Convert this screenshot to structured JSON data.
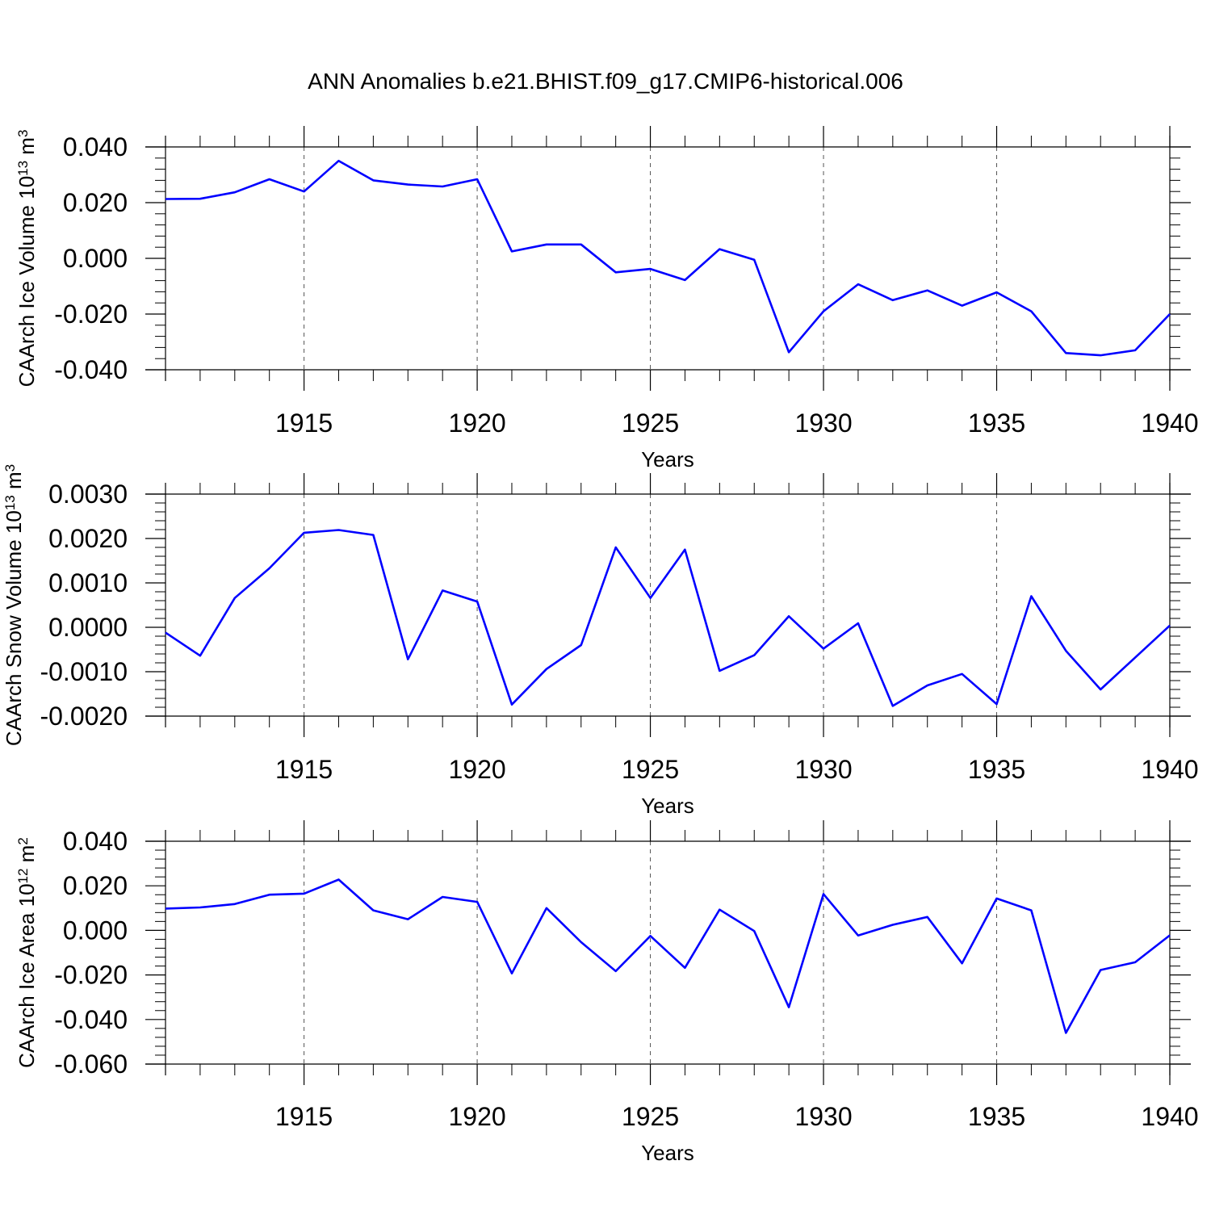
{
  "title": "ANN Anomalies b.e21.BHIST.f09_g17.CMIP6-historical.006",
  "colors": {
    "series": "#0000ff",
    "axis": "#000000",
    "grid": "#555555"
  },
  "chart_data": [
    {
      "type": "line",
      "ylabel": {
        "main": "CAArch Ice Volume 10",
        "exp": "13",
        "unit": " m",
        "unit_exp": "3"
      },
      "xlabel": "Years",
      "xlim": [
        1911,
        1940
      ],
      "ylim": [
        -0.04,
        0.04
      ],
      "xticks": [
        1915,
        1920,
        1925,
        1930,
        1935,
        1940
      ],
      "xtick_labels": [
        "1915",
        "1920",
        "1925",
        "1930",
        "1935",
        "1940"
      ],
      "yticks": [
        -0.04,
        -0.02,
        0.0,
        0.02,
        0.04
      ],
      "ytick_labels": [
        "-0.040",
        "-0.020",
        "0.000",
        "0.020",
        "0.040"
      ],
      "grid": "vertical dashed at major x ticks",
      "x": [
        1911,
        1912,
        1913,
        1914,
        1915,
        1916,
        1917,
        1918,
        1919,
        1920,
        1921,
        1922,
        1923,
        1924,
        1925,
        1926,
        1927,
        1928,
        1929,
        1930,
        1931,
        1932,
        1933,
        1934,
        1935,
        1936,
        1937,
        1938,
        1939,
        1940
      ],
      "series": [
        {
          "values": [
            0.0213,
            0.0214,
            0.0237,
            0.0284,
            0.024,
            0.035,
            0.028,
            0.0265,
            0.0258,
            0.0284,
            0.0025,
            0.005,
            0.005,
            -0.005,
            -0.0038,
            -0.0078,
            0.0033,
            -0.0005,
            -0.0337,
            -0.019,
            -0.0093,
            -0.015,
            -0.0115,
            -0.017,
            -0.0122,
            -0.019,
            -0.034,
            -0.0348,
            -0.033,
            -0.02
          ]
        }
      ]
    },
    {
      "type": "line",
      "ylabel": {
        "main": "CAArch Snow Volume 10",
        "exp": "13",
        "unit": " m",
        "unit_exp": "3"
      },
      "xlabel": "Years",
      "xlim": [
        1911,
        1940
      ],
      "ylim": [
        -0.002,
        0.003
      ],
      "xticks": [
        1915,
        1920,
        1925,
        1930,
        1935,
        1940
      ],
      "xtick_labels": [
        "1915",
        "1920",
        "1925",
        "1930",
        "1935",
        "1940"
      ],
      "yticks": [
        -0.002,
        -0.001,
        0.0,
        0.001,
        0.002,
        0.003
      ],
      "ytick_labels": [
        "-0.0020",
        "-0.0010",
        "0.0000",
        "0.0010",
        "0.0020",
        "0.0030"
      ],
      "grid": "vertical dashed at major x ticks",
      "x": [
        1911,
        1912,
        1913,
        1914,
        1915,
        1916,
        1917,
        1918,
        1919,
        1920,
        1921,
        1922,
        1923,
        1924,
        1925,
        1926,
        1927,
        1928,
        1929,
        1930,
        1931,
        1932,
        1933,
        1934,
        1935,
        1936,
        1937,
        1938,
        1939,
        1940
      ],
      "series": [
        {
          "values": [
            -0.00012,
            -0.00064,
            0.00066,
            0.00133,
            0.00213,
            0.00219,
            0.00208,
            -0.00072,
            0.00083,
            0.00058,
            -0.00174,
            -0.00094,
            -0.0004,
            0.0018,
            0.00066,
            0.00175,
            -0.00098,
            -0.00063,
            0.00025,
            -0.00048,
            9e-05,
            -0.00177,
            -0.00131,
            -0.00105,
            -0.00173,
            0.0007,
            -0.00053,
            -0.0014,
            -0.00068,
            4e-05
          ]
        }
      ]
    },
    {
      "type": "line",
      "ylabel": {
        "main": "CAArch Ice Area 10",
        "exp": "12",
        "unit": " m",
        "unit_exp": "2"
      },
      "xlabel": "Years",
      "xlim": [
        1911,
        1940
      ],
      "ylim": [
        -0.06,
        0.04
      ],
      "xticks": [
        1915,
        1920,
        1925,
        1930,
        1935,
        1940
      ],
      "xtick_labels": [
        "1915",
        "1920",
        "1925",
        "1930",
        "1935",
        "1940"
      ],
      "yticks": [
        -0.06,
        -0.04,
        -0.02,
        0.0,
        0.02,
        0.04
      ],
      "ytick_labels": [
        "-0.060",
        "-0.040",
        "-0.020",
        "0.000",
        "0.020",
        "0.040"
      ],
      "grid": "vertical dashed at major x ticks",
      "x": [
        1911,
        1912,
        1913,
        1914,
        1915,
        1916,
        1917,
        1918,
        1919,
        1920,
        1921,
        1922,
        1923,
        1924,
        1925,
        1926,
        1927,
        1928,
        1929,
        1930,
        1931,
        1932,
        1933,
        1934,
        1935,
        1936,
        1937,
        1938,
        1939,
        1940
      ],
      "series": [
        {
          "values": [
            0.0098,
            0.0103,
            0.0118,
            0.016,
            0.0165,
            0.0228,
            0.009,
            0.005,
            0.015,
            0.0128,
            -0.0193,
            0.01,
            -0.0053,
            -0.0183,
            -0.0025,
            -0.0168,
            0.0093,
            -0.0003,
            -0.0345,
            0.0163,
            -0.0023,
            0.0025,
            0.006,
            -0.0148,
            0.0143,
            0.009,
            -0.046,
            -0.0178,
            -0.0143,
            -0.0022
          ]
        }
      ]
    }
  ]
}
